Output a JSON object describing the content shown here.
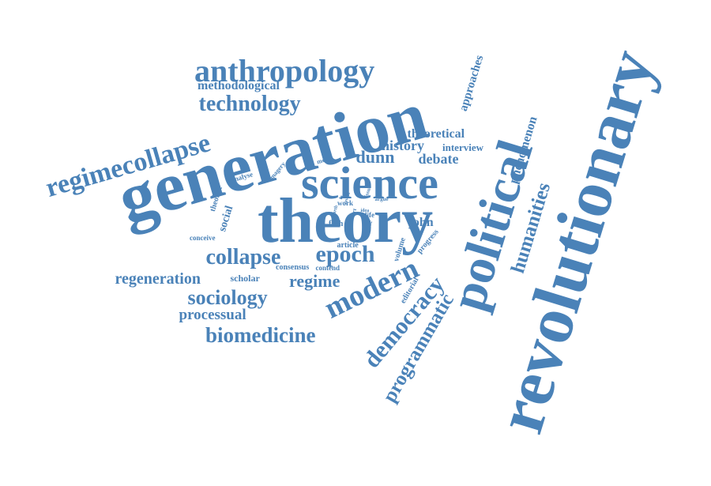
{
  "colors": {
    "word": "#4a82b8",
    "background": "#ffffff"
  },
  "words": [
    "revolutionary",
    "generation",
    "theory",
    "political",
    "science",
    "anthropology",
    "regimecollapse",
    "technology",
    "modern",
    "democracy",
    "programmatic",
    "humanities",
    "epoch",
    "collapse",
    "biomedicine",
    "sociology",
    "regime",
    "regeneration",
    "processual",
    "phenomenon",
    "approaches",
    "history",
    "debate",
    "dunn",
    "theoretical",
    "methodological",
    "john",
    "interview",
    "editorial",
    "scholar",
    "consensus",
    "social",
    "theorist",
    "volume",
    "fifth",
    "article",
    "progress",
    "conceive",
    "contend",
    "come",
    "life",
    "work",
    "analyse",
    "imagery",
    "mean",
    "argue",
    "art",
    "issue",
    "fourth",
    "reveal",
    "idea",
    "fo"
  ]
}
